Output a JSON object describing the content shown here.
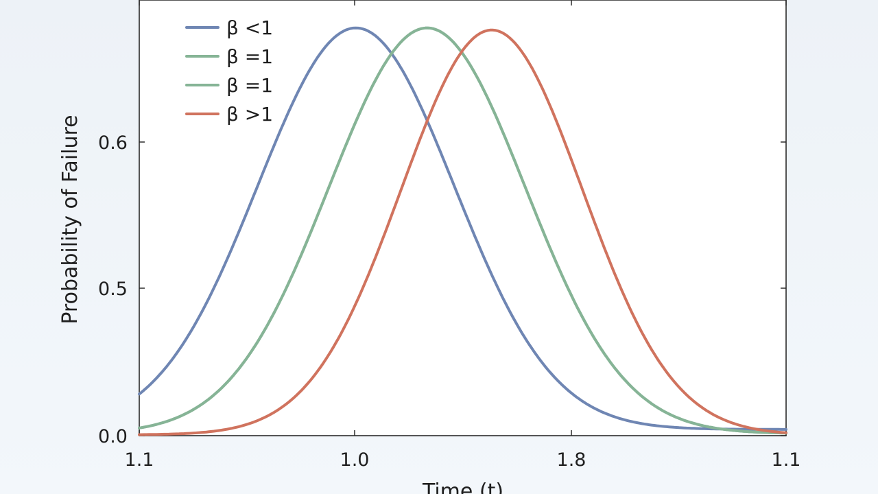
{
  "chart_data": {
    "type": "line",
    "title": "",
    "xlabel": "Time (t)",
    "ylabel": "Probability of Failure",
    "x_ticks": [
      "1.1",
      "1.0",
      "1.8",
      "1.1"
    ],
    "y_ticks": [
      "0.0",
      "0.5",
      "0.6"
    ],
    "grid": false,
    "legend_position": "top-left",
    "series": [
      {
        "name": "β <1",
        "color": "#6f86b3",
        "peak_x": 0.335,
        "peak_y": 0.98,
        "sigma": 0.152,
        "base": 0.015
      },
      {
        "name": "β =1",
        "color": "#86b496",
        "peak_x": 0.445,
        "peak_y": 0.98,
        "sigma": 0.152,
        "base": 0.005
      },
      {
        "name": "β =1",
        "color": "#86b496",
        "peak_x": 0.445,
        "peak_y": 0.98,
        "sigma": 0.152,
        "base": 0.005
      },
      {
        "name": "β >1",
        "color": "#d0735e",
        "peak_x": 0.545,
        "peak_y": 0.975,
        "sigma": 0.14,
        "base": 0.002
      }
    ]
  }
}
